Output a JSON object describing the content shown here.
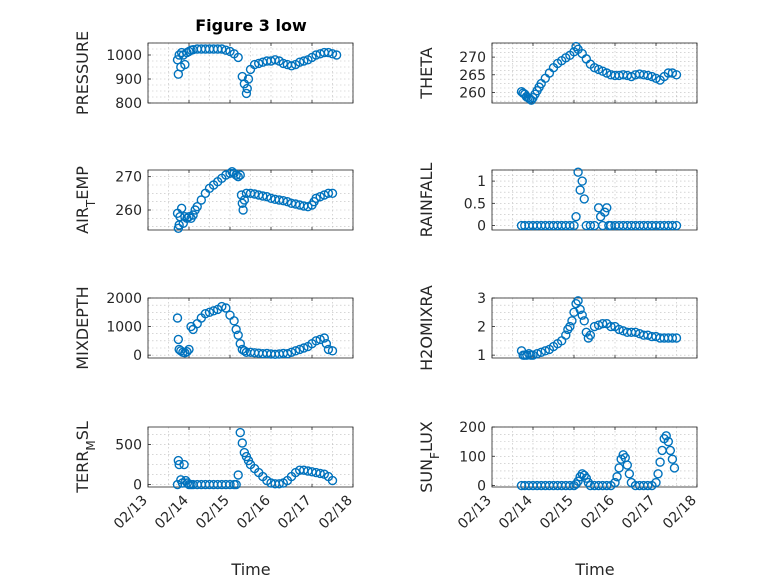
{
  "figure": {
    "title": "Figure 3 low",
    "xlabel": "Time"
  },
  "chart_data": [
    {
      "id": "pressure",
      "type": "scatter",
      "ylabel": "PRESSURE",
      "ylim": [
        800,
        1050
      ],
      "yticks": [
        "800",
        "900",
        "1000"
      ],
      "ytick_values": [
        800,
        900,
        1000
      ],
      "xlim": [
        0,
        5
      ],
      "xticks": [
        "02/13",
        "02/14",
        "02/15",
        "02/16",
        "02/17",
        "02/18"
      ],
      "show_xticklabels": false,
      "x": [
        0.72,
        0.74,
        0.76,
        0.8,
        0.82,
        0.86,
        0.9,
        0.95,
        1.0,
        1.05,
        1.1,
        1.2,
        1.3,
        1.4,
        1.5,
        1.6,
        1.7,
        1.8,
        1.9,
        2.0,
        2.1,
        2.2,
        2.3,
        2.35,
        2.4,
        2.42,
        2.45,
        2.5,
        2.6,
        2.7,
        2.8,
        2.9,
        3.0,
        3.1,
        3.2,
        3.3,
        3.4,
        3.5,
        3.6,
        3.7,
        3.8,
        3.9,
        4.0,
        4.1,
        4.2,
        4.3,
        4.4,
        4.5,
        4.6
      ],
      "y": [
        980,
        920,
        1000,
        950,
        1010,
        1000,
        960,
        1010,
        1015,
        1020,
        1022,
        1025,
        1025,
        1025,
        1025,
        1025,
        1025,
        1025,
        1020,
        1015,
        1005,
        990,
        910,
        880,
        840,
        860,
        900,
        940,
        960,
        965,
        970,
        975,
        975,
        980,
        975,
        965,
        960,
        955,
        960,
        970,
        975,
        980,
        990,
        1000,
        1005,
        1010,
        1010,
        1005,
        1000
      ]
    },
    {
      "id": "theta",
      "type": "scatter",
      "ylabel": "THETA",
      "ylim": [
        257,
        274
      ],
      "yticks": [
        "260",
        "265",
        "270"
      ],
      "ytick_values": [
        260,
        265,
        270
      ],
      "xlim": [
        0,
        5
      ],
      "xticks": [
        "02/13",
        "02/14",
        "02/15",
        "02/16",
        "02/17",
        "02/18"
      ],
      "show_xticklabels": false,
      "x": [
        0.72,
        0.76,
        0.8,
        0.84,
        0.88,
        0.92,
        0.96,
        1.0,
        1.05,
        1.1,
        1.15,
        1.2,
        1.3,
        1.4,
        1.5,
        1.6,
        1.7,
        1.8,
        1.9,
        2.0,
        2.05,
        2.1,
        2.2,
        2.3,
        2.4,
        2.5,
        2.6,
        2.7,
        2.8,
        2.9,
        3.0,
        3.1,
        3.2,
        3.3,
        3.4,
        3.5,
        3.6,
        3.7,
        3.8,
        3.9,
        4.0,
        4.1,
        4.2,
        4.3,
        4.4,
        4.5
      ],
      "y": [
        260.2,
        259.8,
        259.5,
        258.8,
        258.5,
        258.2,
        257.8,
        258.5,
        259.5,
        260.5,
        261.5,
        262.5,
        264,
        265.5,
        267,
        268.2,
        269,
        269.8,
        270.5,
        271.5,
        273,
        272.2,
        271,
        269.5,
        268,
        267,
        266.5,
        266,
        265.5,
        265,
        264.8,
        264.8,
        265,
        264.8,
        264.5,
        265,
        265.2,
        265,
        264.8,
        264.5,
        264,
        263.5,
        264.5,
        265.5,
        265.5,
        265
      ]
    },
    {
      "id": "air_temp",
      "type": "scatter",
      "ylabel": "AIR_TEMP",
      "ylim": [
        254,
        272
      ],
      "yticks": [
        "260",
        "270"
      ],
      "ytick_values": [
        260,
        270
      ],
      "xlim": [
        0,
        5
      ],
      "xticks": [
        "02/13",
        "02/14",
        "02/15",
        "02/16",
        "02/17",
        "02/18"
      ],
      "show_xticklabels": false,
      "x": [
        0.72,
        0.74,
        0.76,
        0.78,
        0.82,
        0.86,
        0.9,
        0.95,
        1.0,
        1.05,
        1.1,
        1.15,
        1.2,
        1.3,
        1.4,
        1.5,
        1.6,
        1.7,
        1.8,
        1.9,
        2.0,
        2.05,
        2.1,
        2.15,
        2.2,
        2.25,
        2.28,
        2.3,
        2.32,
        2.35,
        2.4,
        2.5,
        2.6,
        2.7,
        2.8,
        2.9,
        3.0,
        3.1,
        3.2,
        3.3,
        3.4,
        3.5,
        3.6,
        3.7,
        3.8,
        3.9,
        4.0,
        4.05,
        4.1,
        4.2,
        4.3,
        4.4,
        4.5
      ],
      "y": [
        259,
        254.5,
        255.5,
        258,
        260.5,
        256,
        258,
        257.5,
        258,
        257.5,
        258.5,
        260,
        261,
        263,
        265,
        266.5,
        267.5,
        268.5,
        269.5,
        270.5,
        271,
        271.5,
        271,
        270.5,
        270,
        270.5,
        264.5,
        262,
        260,
        263,
        265,
        265,
        264.8,
        264.5,
        264.2,
        264,
        263.5,
        263.2,
        263,
        262.8,
        262.5,
        262,
        261.8,
        261.5,
        261.2,
        261,
        261.5,
        262.5,
        263.5,
        264,
        264.5,
        265,
        265
      ]
    },
    {
      "id": "rainfall",
      "type": "scatter",
      "ylabel": "RAINFALL",
      "ylim": [
        -0.1,
        1.25
      ],
      "yticks": [
        "0",
        "0.5",
        "1"
      ],
      "ytick_values": [
        0,
        0.5,
        1
      ],
      "xlim": [
        0,
        5
      ],
      "xticks": [
        "02/13",
        "02/14",
        "02/15",
        "02/16",
        "02/17",
        "02/18"
      ],
      "show_xticklabels": false,
      "x": [
        0.72,
        0.8,
        0.9,
        1.0,
        1.1,
        1.2,
        1.3,
        1.4,
        1.5,
        1.6,
        1.7,
        1.8,
        1.9,
        2.0,
        2.05,
        2.1,
        2.15,
        2.2,
        2.25,
        2.3,
        2.4,
        2.5,
        2.6,
        2.65,
        2.7,
        2.75,
        2.8,
        2.85,
        2.9,
        3.0,
        3.1,
        3.2,
        3.3,
        3.4,
        3.5,
        3.6,
        3.7,
        3.8,
        3.9,
        4.0,
        4.1,
        4.2,
        4.3,
        4.4,
        4.5
      ],
      "y": [
        0,
        0,
        0,
        0,
        0,
        0,
        0,
        0,
        0,
        0,
        0,
        0,
        0,
        0,
        0.2,
        1.2,
        0.8,
        1.0,
        0.6,
        0,
        0,
        0,
        0.4,
        0.2,
        0,
        0.3,
        0.4,
        0,
        0,
        0,
        0,
        0,
        0,
        0,
        0,
        0,
        0,
        0,
        0,
        0,
        0,
        0,
        0,
        0,
        0
      ]
    },
    {
      "id": "mixdepth",
      "type": "scatter",
      "ylabel": "MIXDEPTH",
      "ylim": [
        -100,
        2000
      ],
      "yticks": [
        "0",
        "1000",
        "2000"
      ],
      "ytick_values": [
        0,
        1000,
        2000
      ],
      "xlim": [
        0,
        5
      ],
      "xticks": [
        "02/13",
        "02/14",
        "02/15",
        "02/16",
        "02/17",
        "02/18"
      ],
      "show_xticklabels": false,
      "x": [
        0.72,
        0.74,
        0.76,
        0.8,
        0.85,
        0.9,
        0.95,
        1.0,
        1.05,
        1.1,
        1.2,
        1.3,
        1.4,
        1.5,
        1.6,
        1.7,
        1.8,
        1.9,
        2.0,
        2.1,
        2.15,
        2.2,
        2.25,
        2.3,
        2.35,
        2.4,
        2.5,
        2.6,
        2.7,
        2.8,
        2.9,
        3.0,
        3.1,
        3.2,
        3.3,
        3.4,
        3.5,
        3.6,
        3.7,
        3.8,
        3.9,
        4.0,
        4.1,
        4.2,
        4.3,
        4.35,
        4.4,
        4.5
      ],
      "y": [
        1300,
        550,
        200,
        150,
        100,
        80,
        120,
        200,
        1000,
        900,
        1100,
        1300,
        1450,
        1500,
        1550,
        1600,
        1700,
        1650,
        1400,
        1200,
        900,
        700,
        400,
        200,
        150,
        100,
        100,
        80,
        70,
        50,
        60,
        40,
        30,
        40,
        60,
        50,
        100,
        150,
        200,
        250,
        300,
        400,
        500,
        550,
        600,
        400,
        200,
        150
      ]
    },
    {
      "id": "h2omixra",
      "type": "scatter",
      "ylabel": "H2OMIXRA",
      "ylim": [
        0.9,
        3.0
      ],
      "yticks": [
        "1",
        "2",
        "3"
      ],
      "ytick_values": [
        1,
        2,
        3
      ],
      "xlim": [
        0,
        5
      ],
      "xticks": [
        "02/13",
        "02/14",
        "02/15",
        "02/16",
        "02/17",
        "02/18"
      ],
      "show_xticklabels": false,
      "x": [
        0.72,
        0.76,
        0.8,
        0.85,
        0.9,
        0.95,
        1.0,
        1.1,
        1.2,
        1.3,
        1.4,
        1.5,
        1.6,
        1.7,
        1.8,
        1.85,
        1.9,
        1.95,
        2.0,
        2.05,
        2.1,
        2.15,
        2.2,
        2.25,
        2.3,
        2.35,
        2.4,
        2.5,
        2.6,
        2.7,
        2.8,
        2.9,
        3.0,
        3.1,
        3.2,
        3.3,
        3.4,
        3.5,
        3.6,
        3.7,
        3.8,
        3.9,
        4.0,
        4.1,
        4.2,
        4.3,
        4.4,
        4.5
      ],
      "y": [
        1.15,
        1.0,
        1.0,
        1.0,
        1.05,
        1.0,
        1.0,
        1.05,
        1.1,
        1.15,
        1.2,
        1.3,
        1.4,
        1.5,
        1.7,
        1.9,
        2.0,
        2.2,
        2.5,
        2.8,
        2.9,
        2.6,
        2.4,
        2.2,
        1.8,
        1.6,
        1.7,
        2.0,
        2.05,
        2.1,
        2.1,
        2.0,
        2.0,
        1.9,
        1.85,
        1.8,
        1.8,
        1.8,
        1.75,
        1.7,
        1.7,
        1.65,
        1.65,
        1.6,
        1.6,
        1.6,
        1.6,
        1.6
      ]
    },
    {
      "id": "terr_msl",
      "type": "scatter",
      "ylabel": "TERR_MSL",
      "ylim": [
        -30,
        720
      ],
      "yticks": [
        "0",
        "500"
      ],
      "ytick_values": [
        0,
        500
      ],
      "xlim": [
        0,
        5
      ],
      "xticks": [
        "02/13",
        "02/14",
        "02/15",
        "02/16",
        "02/17",
        "02/18"
      ],
      "show_xticklabels": true,
      "x": [
        0.72,
        0.74,
        0.76,
        0.8,
        0.84,
        0.88,
        0.92,
        0.96,
        1.0,
        1.05,
        1.1,
        1.2,
        1.3,
        1.4,
        1.5,
        1.6,
        1.7,
        1.8,
        1.9,
        2.0,
        2.1,
        2.15,
        2.2,
        2.25,
        2.3,
        2.35,
        2.4,
        2.45,
        2.5,
        2.6,
        2.7,
        2.8,
        2.9,
        3.0,
        3.1,
        3.2,
        3.3,
        3.4,
        3.5,
        3.6,
        3.7,
        3.8,
        3.9,
        4.0,
        4.1,
        4.2,
        4.3,
        4.4,
        4.5
      ],
      "y": [
        0,
        300,
        250,
        60,
        20,
        250,
        50,
        20,
        0,
        0,
        0,
        0,
        0,
        0,
        0,
        0,
        0,
        0,
        0,
        0,
        0,
        0,
        120,
        650,
        520,
        400,
        350,
        300,
        250,
        200,
        150,
        100,
        50,
        20,
        10,
        10,
        20,
        50,
        100,
        150,
        180,
        180,
        170,
        160,
        150,
        140,
        130,
        100,
        50
      ]
    },
    {
      "id": "sun_flux",
      "type": "scatter",
      "ylabel": "SUN_FLUX",
      "ylim": [
        -5,
        200
      ],
      "yticks": [
        "0",
        "100",
        "200"
      ],
      "ytick_values": [
        0,
        100,
        200
      ],
      "xlim": [
        0,
        5
      ],
      "xticks": [
        "02/13",
        "02/14",
        "02/15",
        "02/16",
        "02/17",
        "02/18"
      ],
      "show_xticklabels": true,
      "x": [
        0.72,
        0.8,
        0.9,
        1.0,
        1.1,
        1.2,
        1.3,
        1.4,
        1.5,
        1.6,
        1.7,
        1.8,
        1.9,
        2.0,
        2.05,
        2.1,
        2.15,
        2.2,
        2.25,
        2.3,
        2.35,
        2.4,
        2.5,
        2.6,
        2.7,
        2.8,
        2.9,
        3.0,
        3.05,
        3.1,
        3.15,
        3.2,
        3.25,
        3.3,
        3.35,
        3.4,
        3.5,
        3.6,
        3.7,
        3.8,
        3.9,
        4.0,
        4.05,
        4.1,
        4.15,
        4.2,
        4.25,
        4.3,
        4.35,
        4.4,
        4.45
      ],
      "y": [
        0,
        0,
        0,
        0,
        0,
        0,
        0,
        0,
        0,
        0,
        0,
        0,
        0,
        0,
        5,
        15,
        30,
        40,
        35,
        25,
        10,
        0,
        0,
        0,
        0,
        0,
        0,
        10,
        30,
        60,
        90,
        105,
        95,
        70,
        40,
        10,
        0,
        0,
        0,
        0,
        0,
        10,
        40,
        80,
        120,
        160,
        170,
        150,
        120,
        90,
        60
      ]
    }
  ]
}
